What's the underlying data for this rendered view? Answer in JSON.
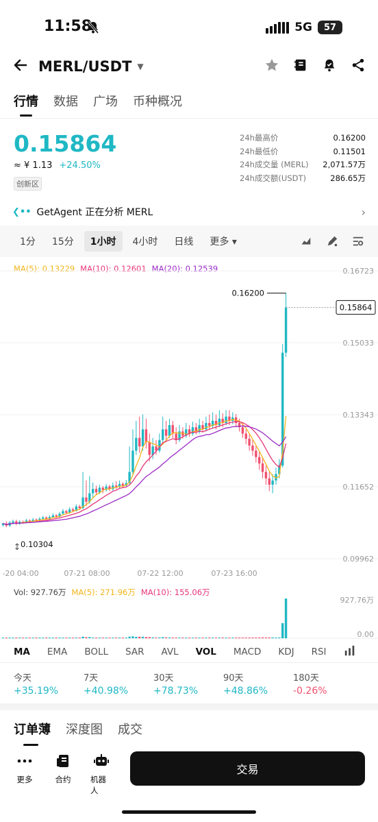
{
  "status_bar": {
    "time": "11:58",
    "network": "5G",
    "battery": "57"
  },
  "header": {
    "pair": "MERL/USDT"
  },
  "tabs": [
    "行情",
    "数据",
    "广场",
    "币种概况"
  ],
  "price": {
    "last": "0.15864",
    "cny": "≈ ¥ 1.13",
    "change": "+24.50%",
    "zone": "创新区"
  },
  "stats": [
    {
      "k": "24h最高价",
      "v": "0.16200"
    },
    {
      "k": "24h最低价",
      "v": "0.11501"
    },
    {
      "k": "24h成交量 (MERL)",
      "v": "2,071.57万"
    },
    {
      "k": "24h成交额(USDT)",
      "v": "286.65万"
    }
  ],
  "agent": {
    "logo": "❮••",
    "text": "GetAgent 正在分析 MERL",
    "arrow": "›"
  },
  "intervals": [
    "1分",
    "15分",
    "1小时",
    "4小时",
    "日线",
    "更多 ▾"
  ],
  "ma_legend": {
    "ma5": "MA(5): 0.13229",
    "ma10": "MA(10): 0.12601",
    "ma20": "MA(20): 0.12539"
  },
  "vol_legend": {
    "vol": "Vol: 927.76万",
    "ma5": "MA(5): 271.96万",
    "ma10": "MA(10): 155.06万"
  },
  "indicators": [
    "MA",
    "EMA",
    "BOLL",
    "SAR",
    "AVL",
    "VOL",
    "MACD",
    "KDJ",
    "RSI"
  ],
  "performance": [
    {
      "k": "今天",
      "v": "+35.19%",
      "pos": true
    },
    {
      "k": "7天",
      "v": "+40.98%",
      "pos": true
    },
    {
      "k": "30天",
      "v": "+78.73%",
      "pos": true
    },
    {
      "k": "90天",
      "v": "+48.86%",
      "pos": true
    },
    {
      "k": "180天",
      "v": "-0.26%",
      "pos": false
    }
  ],
  "book_tabs": [
    "订单薄",
    "深度图",
    "成交"
  ],
  "bottom_nav": [
    "更多",
    "合约",
    "机器人"
  ],
  "trade_button": "交易",
  "colors": {
    "up": "#1fb8c4",
    "down": "#f0506e",
    "ma5": "#f2b51b",
    "ma10": "#e8367a",
    "ma20": "#9b2bc7"
  },
  "chart_data": {
    "type": "candlestick",
    "y_ticks": [
      "0.16723",
      "0.15033",
      "0.13343",
      "0.11652",
      "0.09962"
    ],
    "y_range": [
      0.09962,
      0.16723
    ],
    "x_labels": [
      "-20 04:00",
      "07-21 08:00",
      "07-22 12:00",
      "07-23 16:00"
    ],
    "current_price_label": "0.15864",
    "high_label": "0.16200",
    "low_label": "0.10304",
    "vol_ticks": [
      "927.76万",
      "0.00"
    ],
    "candles": [
      [
        0.1075,
        0.1079,
        0.1072,
        0.1081
      ],
      [
        0.1079,
        0.1074,
        0.107,
        0.1084
      ],
      [
        0.1074,
        0.1081,
        0.1071,
        0.1085
      ],
      [
        0.1081,
        0.1084,
        0.1077,
        0.1088
      ],
      [
        0.1084,
        0.1078,
        0.1075,
        0.1088
      ],
      [
        0.1078,
        0.1083,
        0.1076,
        0.1087
      ],
      [
        0.1083,
        0.1082,
        0.1078,
        0.1086
      ],
      [
        0.1082,
        0.1086,
        0.1079,
        0.109
      ],
      [
        0.1086,
        0.1084,
        0.108,
        0.1089
      ],
      [
        0.1084,
        0.1088,
        0.1082,
        0.1092
      ],
      [
        0.1088,
        0.1086,
        0.1083,
        0.1091
      ],
      [
        0.1086,
        0.109,
        0.1084,
        0.1094
      ],
      [
        0.109,
        0.1093,
        0.1087,
        0.1097
      ],
      [
        0.1093,
        0.1089,
        0.1086,
        0.1096
      ],
      [
        0.1089,
        0.1094,
        0.1087,
        0.1098
      ],
      [
        0.1094,
        0.1098,
        0.1091,
        0.1103
      ],
      [
        0.1098,
        0.1095,
        0.1092,
        0.1101
      ],
      [
        0.1095,
        0.1102,
        0.1093,
        0.1106
      ],
      [
        0.1102,
        0.1108,
        0.1099,
        0.1113
      ],
      [
        0.1108,
        0.1104,
        0.11,
        0.1111
      ],
      [
        0.1104,
        0.1112,
        0.1102,
        0.1117
      ],
      [
        0.1112,
        0.1109,
        0.1105,
        0.1116
      ],
      [
        0.1109,
        0.1119,
        0.1107,
        0.1124
      ],
      [
        0.1119,
        0.1115,
        0.1111,
        0.1123
      ],
      [
        0.1115,
        0.114,
        0.1113,
        0.12
      ],
      [
        0.114,
        0.113,
        0.112,
        0.118
      ],
      [
        0.113,
        0.115,
        0.1125,
        0.119
      ],
      [
        0.115,
        0.116,
        0.114,
        0.1175
      ],
      [
        0.116,
        0.1152,
        0.1145,
        0.1168
      ],
      [
        0.1152,
        0.1163,
        0.1148,
        0.117
      ],
      [
        0.1163,
        0.1158,
        0.115,
        0.1167
      ],
      [
        0.1158,
        0.1166,
        0.1154,
        0.1172
      ],
      [
        0.1166,
        0.116,
        0.1155,
        0.117
      ],
      [
        0.116,
        0.1168,
        0.1156,
        0.1175
      ],
      [
        0.1168,
        0.1165,
        0.116,
        0.1178
      ],
      [
        0.1165,
        0.1172,
        0.1162,
        0.118
      ],
      [
        0.1172,
        0.1168,
        0.1164,
        0.1176
      ],
      [
        0.1168,
        0.1174,
        0.1165,
        0.1181
      ],
      [
        0.1174,
        0.12,
        0.117,
        0.126
      ],
      [
        0.12,
        0.125,
        0.1195,
        0.13
      ],
      [
        0.125,
        0.128,
        0.124,
        0.132
      ],
      [
        0.128,
        0.126,
        0.1245,
        0.133
      ],
      [
        0.126,
        0.13,
        0.125,
        0.1335
      ],
      [
        0.13,
        0.127,
        0.1255,
        0.1325
      ],
      [
        0.127,
        0.124,
        0.1225,
        0.129
      ],
      [
        0.124,
        0.126,
        0.123,
        0.128
      ],
      [
        0.126,
        0.125,
        0.124,
        0.1275
      ],
      [
        0.125,
        0.1275,
        0.1245,
        0.129
      ],
      [
        0.1275,
        0.13,
        0.1268,
        0.133
      ],
      [
        0.13,
        0.1285,
        0.127,
        0.132
      ],
      [
        0.1285,
        0.131,
        0.128,
        0.1325
      ],
      [
        0.131,
        0.129,
        0.128,
        0.132
      ],
      [
        0.129,
        0.1275,
        0.1265,
        0.1305
      ],
      [
        0.1275,
        0.1295,
        0.127,
        0.131
      ],
      [
        0.1295,
        0.1285,
        0.1278,
        0.1305
      ],
      [
        0.1285,
        0.13,
        0.128,
        0.1315
      ],
      [
        0.13,
        0.129,
        0.1282,
        0.131
      ],
      [
        0.129,
        0.1305,
        0.1285,
        0.1318
      ],
      [
        0.1305,
        0.1295,
        0.1288,
        0.1315
      ],
      [
        0.1295,
        0.131,
        0.129,
        0.1325
      ],
      [
        0.131,
        0.13,
        0.1292,
        0.132
      ],
      [
        0.13,
        0.1315,
        0.1295,
        0.133
      ],
      [
        0.1315,
        0.1308,
        0.13,
        0.1335
      ],
      [
        0.1308,
        0.132,
        0.1302,
        0.134
      ],
      [
        0.132,
        0.131,
        0.13,
        0.1335
      ],
      [
        0.131,
        0.1325,
        0.1305,
        0.1345
      ],
      [
        0.1325,
        0.1315,
        0.1305,
        0.1338
      ],
      [
        0.1315,
        0.133,
        0.131,
        0.1345
      ],
      [
        0.133,
        0.132,
        0.131,
        0.1345
      ],
      [
        0.132,
        0.1328,
        0.1312,
        0.134
      ],
      [
        0.1328,
        0.1315,
        0.1305,
        0.1336
      ],
      [
        0.1315,
        0.1305,
        0.1295,
        0.1325
      ],
      [
        0.1305,
        0.129,
        0.128,
        0.1315
      ],
      [
        0.129,
        0.1278,
        0.1265,
        0.13
      ],
      [
        0.1278,
        0.1262,
        0.125,
        0.129
      ],
      [
        0.1262,
        0.125,
        0.1238,
        0.1275
      ],
      [
        0.125,
        0.1235,
        0.1222,
        0.1262
      ],
      [
        0.1235,
        0.122,
        0.1205,
        0.1248
      ],
      [
        0.122,
        0.12,
        0.1185,
        0.1235
      ],
      [
        0.12,
        0.1185,
        0.117,
        0.1215
      ],
      [
        0.1185,
        0.117,
        0.1155,
        0.12
      ],
      [
        0.117,
        0.118,
        0.115,
        0.1195
      ],
      [
        0.118,
        0.1195,
        0.117,
        0.121
      ],
      [
        0.1195,
        0.1215,
        0.1185,
        0.123
      ],
      [
        0.1215,
        0.148,
        0.121,
        0.15
      ],
      [
        0.148,
        0.1586,
        0.147,
        0.162
      ]
    ]
  }
}
